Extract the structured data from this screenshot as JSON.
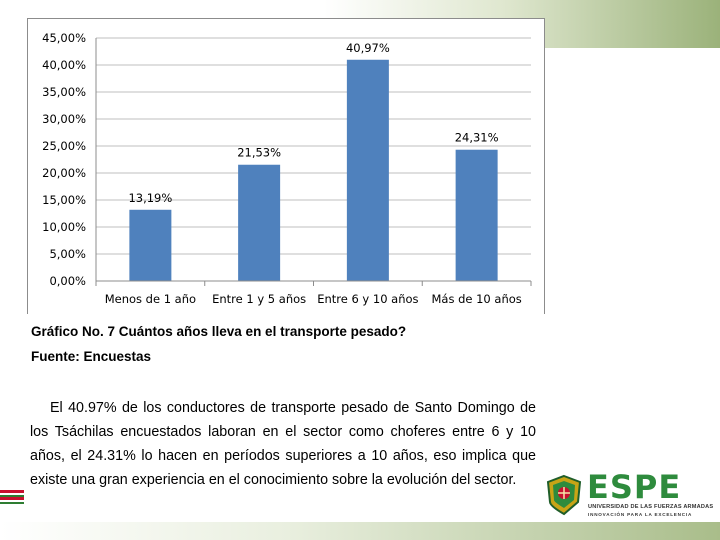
{
  "chart_data": {
    "type": "bar",
    "categories": [
      "Menos de 1 año",
      "Entre 1 y 5 años",
      "Entre 6 y 10 años",
      "Más de 10 años"
    ],
    "values": [
      13.19,
      21.53,
      40.97,
      24.31
    ],
    "data_labels": [
      "13,19%",
      "21,53%",
      "40,97%",
      "24,31%"
    ],
    "y_ticks": [
      "0,00%",
      "5,00%",
      "10,00%",
      "15,00%",
      "20,00%",
      "25,00%",
      "30,00%",
      "35,00%",
      "40,00%",
      "45,00%"
    ],
    "ylim": [
      0,
      45
    ],
    "bar_color": "#4f81bd",
    "gridlines": true,
    "legend": "none",
    "title": "",
    "xlabel": "",
    "ylabel": ""
  },
  "caption": {
    "title": "Gráfico No. 7 Cuántos años lleva en el transporte pesado?",
    "source": "Fuente: Encuestas"
  },
  "body_text": "El 40.97% de los conductores de transporte pesado de Santo Domingo de los Tsáchilas encuestados laboran en el sector como choferes entre 6 y 10 años, el 24.31% lo hacen en períodos superiores a 10 años, eso implica que existe una gran experiencia en el conocimiento sobre la evolución del sector.",
  "logo": {
    "name": "ESPE",
    "line1": "UNIVERSIDAD DE LAS FUERZAS ARMADAS",
    "line2": "INNOVACIÓN PARA LA EXCELENCIA",
    "brand_color": "#2e8b3d"
  },
  "theme": {
    "accent_green": "#9bb27a"
  }
}
